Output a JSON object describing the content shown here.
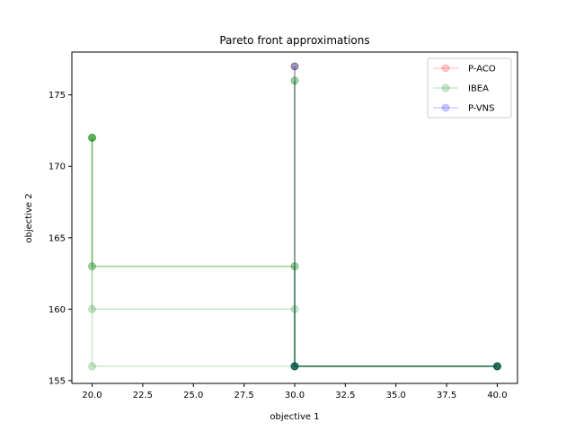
{
  "chart_data": {
    "type": "line",
    "title": "Pareto front approximations",
    "xlabel": "objective 1",
    "ylabel": "objective 2",
    "xlim": [
      19.0,
      41.0
    ],
    "ylim": [
      154.8,
      178.0
    ],
    "x_ticks": [
      "20.0",
      "22.5",
      "25.0",
      "27.5",
      "30.0",
      "32.5",
      "35.0",
      "37.5",
      "40.0"
    ],
    "x_tick_values": [
      20.0,
      22.5,
      25.0,
      27.5,
      30.0,
      32.5,
      35.0,
      37.5,
      40.0
    ],
    "y_ticks": [
      "155",
      "160",
      "165",
      "170",
      "175"
    ],
    "y_tick_values": [
      155,
      160,
      165,
      170,
      175
    ],
    "grid": false,
    "legend_position": "top-right",
    "series": [
      {
        "name": "P-ACO",
        "color": "#ff0000",
        "alpha": 0.2,
        "runs": [
          [
            [
              30,
              177
            ],
            [
              30,
              156
            ],
            [
              40,
              156
            ]
          ]
        ]
      },
      {
        "name": "IBEA",
        "color": "#008000",
        "alpha": 0.2,
        "runs": [
          [
            [
              20,
              172
            ],
            [
              20,
              156
            ],
            [
              40,
              156
            ]
          ],
          [
            [
              20,
              172
            ],
            [
              20,
              160
            ],
            [
              30,
              160
            ],
            [
              30,
              156
            ],
            [
              40,
              156
            ]
          ],
          [
            [
              20,
              172
            ],
            [
              20,
              163
            ],
            [
              30,
              163
            ],
            [
              30,
              156
            ],
            [
              40,
              156
            ]
          ],
          [
            [
              20,
              172
            ],
            [
              20,
              163
            ],
            [
              30,
              163
            ],
            [
              30,
              156
            ],
            [
              40,
              156
            ]
          ],
          [
            [
              30,
              176
            ],
            [
              30,
              156
            ],
            [
              40,
              156
            ]
          ],
          [
            [
              30,
              176
            ],
            [
              30,
              156
            ],
            [
              40,
              156
            ]
          ],
          [
            [
              30,
              177
            ],
            [
              30,
              156
            ],
            [
              40,
              156
            ]
          ]
        ]
      },
      {
        "name": "P-VNS",
        "color": "#0000ff",
        "alpha": 0.2,
        "runs": [
          [
            [
              30,
              177
            ],
            [
              30,
              156
            ],
            [
              40,
              156
            ]
          ]
        ]
      }
    ]
  }
}
